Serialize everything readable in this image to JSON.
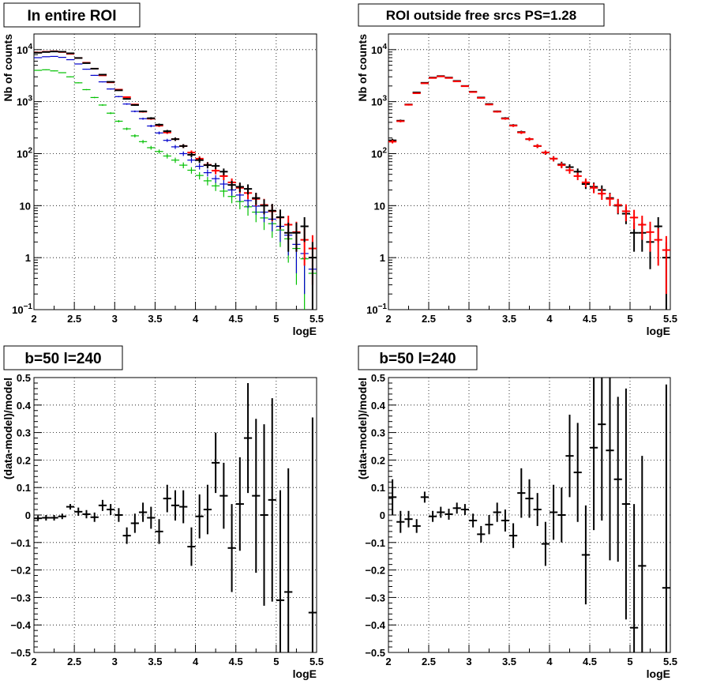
{
  "chart_data": [
    {
      "type": "scatter",
      "title": "In entire ROI",
      "xlabel": "logE",
      "ylabel": "Nb of counts",
      "xlim": [
        2,
        5.5
      ],
      "ylim": [
        0.1,
        20000
      ],
      "yscale": "log",
      "grid": true,
      "xticks": [
        "2",
        "2.5",
        "3",
        "3.5",
        "4",
        "4.5",
        "5",
        "5.5"
      ],
      "yticks": [
        {
          "value": 0.1,
          "base": "10",
          "exp": "−1"
        },
        {
          "value": 1,
          "base": "1",
          "exp": ""
        },
        {
          "value": 10,
          "base": "10",
          "exp": ""
        },
        {
          "value": 100,
          "base": "10",
          "exp": "2"
        },
        {
          "value": 1000,
          "base": "10",
          "exp": "3"
        },
        {
          "value": 10000,
          "base": "10",
          "exp": "4"
        }
      ],
      "series": [
        {
          "color": "#00c000",
          "x": [
            2.05,
            2.15,
            2.25,
            2.35,
            2.45,
            2.55,
            2.65,
            2.75,
            2.85,
            2.95,
            3.05,
            3.15,
            3.25,
            3.35,
            3.45,
            3.55,
            3.65,
            3.75,
            3.85,
            3.95,
            4.05,
            4.15,
            4.25,
            4.35,
            4.45,
            4.55,
            4.65,
            4.75,
            4.85,
            4.95,
            5.05,
            5.15,
            5.25,
            5.35,
            5.45
          ],
          "y": [
            4000,
            4100,
            3900,
            3600,
            3000,
            2300,
            1700,
            1200,
            860,
            600,
            420,
            300,
            220,
            170,
            130,
            110,
            90,
            75,
            60,
            48,
            38,
            30,
            24,
            19,
            15,
            12,
            9.5,
            7.5,
            5.8,
            4.5,
            3.4,
            2.3,
            1.5,
            0.95,
            0.5
          ],
          "err": [
            63,
            64,
            62,
            60,
            55,
            48,
            41,
            35,
            29,
            24,
            20,
            17,
            15,
            13,
            11,
            10,
            9.5,
            8.7,
            7.7,
            6.9,
            6.2,
            5.5,
            4.9,
            4.4,
            3.9,
            3.5,
            3.1,
            2.7,
            2.4,
            2.1,
            1.8,
            1.5,
            1.2,
            0.9,
            0.6
          ]
        },
        {
          "color": "#0000cc",
          "x": [
            2.05,
            2.15,
            2.25,
            2.35,
            2.45,
            2.55,
            2.65,
            2.75,
            2.85,
            2.95,
            3.05,
            3.15,
            3.25,
            3.35,
            3.45,
            3.55,
            3.65,
            3.75,
            3.85,
            3.95,
            4.05,
            4.15,
            4.25,
            4.35,
            4.45,
            4.55,
            4.65,
            4.75,
            4.85,
            4.95,
            5.05,
            5.15,
            5.25,
            5.35,
            5.45
          ],
          "y": [
            7000,
            7300,
            7400,
            7100,
            6400,
            5300,
            4200,
            3200,
            2400,
            1750,
            1250,
            900,
            650,
            470,
            340,
            250,
            180,
            135,
            100,
            75,
            57,
            43,
            33,
            26,
            20,
            16,
            12.5,
            9.8,
            7.5,
            5.5,
            4,
            2.7,
            1.8,
            1.2,
            0.6
          ],
          "err": [
            84,
            85,
            86,
            84,
            80,
            73,
            65,
            57,
            49,
            42,
            35,
            30,
            25,
            22,
            18,
            16,
            13,
            12,
            10,
            8.7,
            7.5,
            6.6,
            5.7,
            5.1,
            4.5,
            4,
            3.5,
            3.1,
            2.7,
            2.3,
            2,
            1.6,
            1.3,
            1,
            0.7
          ]
        },
        {
          "color": "#ff0000",
          "x": [
            2.05,
            2.15,
            2.25,
            2.35,
            2.45,
            2.55,
            2.65,
            2.75,
            2.85,
            2.95,
            3.05,
            3.15,
            3.25,
            3.35,
            3.45,
            3.55,
            3.65,
            3.75,
            3.85,
            3.95,
            4.05,
            4.15,
            4.25,
            4.35,
            4.45,
            4.55,
            4.65,
            4.75,
            4.85,
            4.95,
            5.05,
            5.15,
            5.25,
            5.35,
            5.45
          ],
          "y": [
            8800,
            9100,
            9300,
            9000,
            8300,
            6900,
            5600,
            4300,
            3200,
            2350,
            1700,
            1220,
            880,
            640,
            470,
            345,
            255,
            190,
            140,
            105,
            80,
            61,
            47,
            37,
            28,
            22,
            17.5,
            13.5,
            10.3,
            7.8,
            5.9,
            4.3,
            3.1,
            2.2,
            1.5
          ],
          "err": [
            94,
            95,
            96,
            95,
            91,
            83,
            75,
            66,
            57,
            48,
            41,
            35,
            30,
            25,
            22,
            19,
            16,
            14,
            12,
            10,
            9,
            7.8,
            6.9,
            6.1,
            5.3,
            4.7,
            4.2,
            3.7,
            3.2,
            2.8,
            2.4,
            2.1,
            1.8,
            1.5,
            1.2
          ]
        },
        {
          "color": "#000000",
          "x": [
            2.05,
            2.15,
            2.25,
            2.35,
            2.45,
            2.55,
            2.65,
            2.75,
            2.85,
            2.95,
            3.05,
            3.15,
            3.25,
            3.35,
            3.45,
            3.55,
            3.65,
            3.75,
            3.85,
            3.95,
            4.05,
            4.15,
            4.25,
            4.35,
            4.45,
            4.55,
            4.65,
            4.75,
            4.85,
            4.95,
            5.05,
            5.15,
            5.25,
            5.35,
            5.45
          ],
          "y": [
            8700,
            9000,
            9200,
            9100,
            8500,
            6900,
            5500,
            4300,
            3300,
            2400,
            1650,
            1130,
            860,
            650,
            480,
            360,
            270,
            190,
            140,
            95,
            75,
            60,
            58,
            45,
            25,
            23,
            21,
            14,
            10,
            8,
            6,
            3,
            3,
            4,
            1
          ],
          "err": [
            93,
            95,
            96,
            95,
            92,
            83,
            74,
            66,
            57,
            49,
            41,
            34,
            29,
            25,
            22,
            19,
            16,
            14,
            12,
            10,
            9,
            8,
            7.6,
            6.7,
            5,
            4.8,
            4.6,
            3.7,
            3.2,
            2.8,
            2.4,
            1.7,
            1.7,
            2,
            1
          ]
        }
      ]
    },
    {
      "type": "scatter",
      "title": "ROI outside free srcs PS=1.28",
      "xlabel": "logE",
      "ylabel": "Nb of counts",
      "xlim": [
        2,
        5.5
      ],
      "ylim": [
        0.1,
        20000
      ],
      "yscale": "log",
      "grid": true,
      "xticks": [
        "2",
        "2.5",
        "3",
        "3.5",
        "4",
        "4.5",
        "5",
        "5.5"
      ],
      "yticks": [
        {
          "value": 0.1,
          "base": "10",
          "exp": "−1"
        },
        {
          "value": 1,
          "base": "1",
          "exp": ""
        },
        {
          "value": 10,
          "base": "10",
          "exp": ""
        },
        {
          "value": 100,
          "base": "10",
          "exp": "2"
        },
        {
          "value": 1000,
          "base": "10",
          "exp": "3"
        },
        {
          "value": 10000,
          "base": "10",
          "exp": "4"
        }
      ],
      "series": [
        {
          "color": "#000000",
          "x": [
            2.05,
            2.15,
            2.25,
            2.35,
            2.45,
            2.55,
            2.65,
            2.75,
            2.85,
            2.95,
            3.05,
            3.15,
            3.25,
            3.35,
            3.45,
            3.55,
            3.65,
            3.75,
            3.85,
            3.95,
            4.05,
            4.15,
            4.25,
            4.35,
            4.45,
            4.55,
            4.65,
            4.75,
            4.85,
            4.95,
            5.05,
            5.15,
            5.25,
            5.35,
            5.45
          ],
          "y": [
            180,
            430,
            880,
            1500,
            2300,
            2900,
            3100,
            2900,
            2500,
            2000,
            1550,
            1200,
            900,
            650,
            480,
            350,
            260,
            190,
            140,
            105,
            80,
            62,
            55,
            45,
            26,
            23,
            20,
            14,
            10,
            7,
            3,
            3,
            2,
            4,
            1
          ],
          "err": [
            13,
            21,
            30,
            39,
            48,
            54,
            56,
            54,
            50,
            45,
            39,
            35,
            30,
            25,
            22,
            19,
            16,
            14,
            12,
            10,
            9,
            7.9,
            7.4,
            6.7,
            5.1,
            4.8,
            4.5,
            3.7,
            3.2,
            2.6,
            1.7,
            1.7,
            1.4,
            2,
            1
          ]
        },
        {
          "color": "#ff0000",
          "x": [
            2.05,
            2.15,
            2.25,
            2.35,
            2.45,
            2.55,
            2.65,
            2.75,
            2.85,
            2.95,
            3.05,
            3.15,
            3.25,
            3.35,
            3.45,
            3.55,
            3.65,
            3.75,
            3.85,
            3.95,
            4.05,
            4.15,
            4.25,
            4.35,
            4.45,
            4.55,
            4.65,
            4.75,
            4.85,
            4.95,
            5.05,
            5.15,
            5.25,
            5.35,
            5.45
          ],
          "y": [
            170,
            420,
            870,
            1450,
            2250,
            2850,
            3050,
            2850,
            2450,
            1980,
            1530,
            1180,
            880,
            640,
            470,
            345,
            255,
            190,
            140,
            105,
            80,
            60,
            48,
            37,
            28,
            22,
            17,
            13.5,
            10.3,
            7.8,
            5.9,
            4.3,
            3.1,
            2.2,
            1.4
          ],
          "err": [
            13,
            20,
            29,
            38,
            47,
            53,
            55,
            53,
            49,
            44,
            39,
            34,
            30,
            25,
            22,
            19,
            16,
            14,
            12,
            10,
            9,
            7.7,
            6.9,
            6.1,
            5.3,
            4.7,
            4.1,
            3.7,
            3.2,
            2.8,
            2.4,
            2.1,
            1.8,
            1.5,
            1.2
          ]
        }
      ]
    },
    {
      "type": "scatter",
      "title": "b=50 l=240",
      "xlabel": "logE",
      "ylabel": "(data-model)/model",
      "xlim": [
        2,
        5.5
      ],
      "ylim": [
        -0.5,
        0.5
      ],
      "yscale": "linear",
      "grid": true,
      "xticks": [
        "2",
        "2.5",
        "3",
        "3.5",
        "4",
        "4.5",
        "5",
        "5.5"
      ],
      "yticks": [
        "−0.5",
        "−0.4",
        "−0.3",
        "−0.2",
        "−0.1",
        "0",
        "0.1",
        "0.2",
        "0.3",
        "0.4",
        "0.5"
      ],
      "series": [
        {
          "color": "#000000",
          "x": [
            2.05,
            2.15,
            2.25,
            2.35,
            2.45,
            2.55,
            2.65,
            2.75,
            2.85,
            2.95,
            3.05,
            3.15,
            3.25,
            3.35,
            3.45,
            3.55,
            3.65,
            3.75,
            3.85,
            3.95,
            4.05,
            4.15,
            4.25,
            4.35,
            4.45,
            4.55,
            4.65,
            4.75,
            4.85,
            4.95,
            5.05,
            5.15,
            5.25,
            5.35,
            5.45
          ],
          "y": [
            -0.012,
            -0.01,
            -0.01,
            -0.005,
            0.03,
            0.012,
            0.003,
            -0.008,
            0.035,
            0.02,
            0.0,
            -0.075,
            -0.03,
            0.01,
            -0.01,
            -0.06,
            0.06,
            0.035,
            0.03,
            -0.115,
            -0.005,
            0.02,
            0.19,
            0.07,
            -0.12,
            0.04,
            0.28,
            0.07,
            0.0,
            0.055,
            -0.31,
            -0.28,
            0,
            0,
            -0.355
          ],
          "err": [
            0.01,
            0.01,
            0.01,
            0.01,
            0.01,
            0.015,
            0.015,
            0.017,
            0.02,
            0.02,
            0.025,
            0.03,
            0.035,
            0.035,
            0.04,
            0.045,
            0.05,
            0.055,
            0.06,
            0.07,
            0.08,
            0.09,
            0.11,
            0.12,
            0.16,
            0.17,
            0.2,
            0.28,
            0.33,
            0.37,
            0.4,
            0.45,
            0,
            0,
            0.71
          ]
        }
      ]
    },
    {
      "type": "scatter",
      "title": "b=50 l=240",
      "xlabel": "logE",
      "ylabel": "(data-model)/model",
      "xlim": [
        2,
        5.5
      ],
      "ylim": [
        -0.5,
        0.5
      ],
      "yscale": "linear",
      "grid": true,
      "xticks": [
        "2",
        "2.5",
        "3",
        "3.5",
        "4",
        "4.5",
        "5",
        "5.5"
      ],
      "yticks": [
        "−0.5",
        "−0.4",
        "−0.3",
        "−0.2",
        "−0.1",
        "0",
        "0.1",
        "0.2",
        "0.3",
        "0.4",
        "0.5"
      ],
      "series": [
        {
          "color": "#000000",
          "x": [
            2.05,
            2.15,
            2.25,
            2.35,
            2.45,
            2.55,
            2.65,
            2.75,
            2.85,
            2.95,
            3.05,
            3.15,
            3.25,
            3.35,
            3.45,
            3.55,
            3.65,
            3.75,
            3.85,
            3.95,
            4.05,
            4.15,
            4.25,
            4.35,
            4.45,
            4.55,
            4.65,
            4.75,
            4.85,
            4.95,
            5.05,
            5.15,
            5.25,
            5.35,
            5.45
          ],
          "y": [
            0.065,
            -0.025,
            -0.015,
            -0.04,
            0.065,
            -0.005,
            0.01,
            0.003,
            0.025,
            0.02,
            -0.02,
            -0.07,
            -0.035,
            0.01,
            -0.02,
            -0.075,
            0.08,
            0.06,
            0.02,
            -0.105,
            0.01,
            0.0,
            0.215,
            0.155,
            -0.145,
            0.245,
            0.33,
            0.235,
            0.13,
            0.04,
            -0.41,
            -0.185,
            0,
            0,
            -0.265
          ],
          "err": [
            0.065,
            0.04,
            0.03,
            0.025,
            0.02,
            0.02,
            0.02,
            0.02,
            0.02,
            0.02,
            0.025,
            0.03,
            0.035,
            0.035,
            0.04,
            0.045,
            0.09,
            0.07,
            0.06,
            0.08,
            0.1,
            0.1,
            0.15,
            0.18,
            0.18,
            0.3,
            0.35,
            0.4,
            0.3,
            0.42,
            0.45,
            0.4,
            0,
            0,
            0.74
          ]
        }
      ]
    }
  ]
}
